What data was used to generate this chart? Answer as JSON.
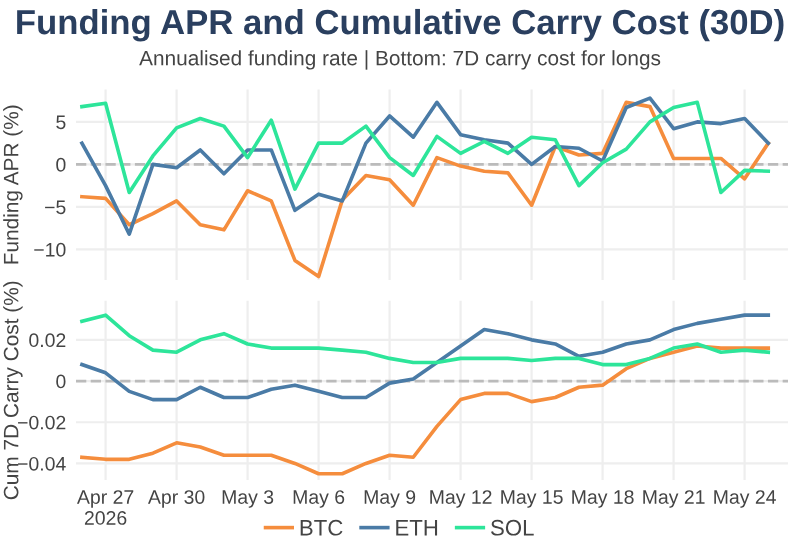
{
  "chart_data": [
    {
      "type": "line",
      "title": "Funding APR and Cumulative Carry Cost (30D)",
      "subtitle": "Annualised funding rate | Bottom: 7D carry cost for longs",
      "ylabel": "Funding APR (%)",
      "x": [
        "2026-04-26",
        "2026-04-27",
        "2026-04-28",
        "2026-04-29",
        "2026-04-30",
        "2026-05-01",
        "2026-05-02",
        "2026-05-03",
        "2026-05-04",
        "2026-05-05",
        "2026-05-06",
        "2026-05-07",
        "2026-05-08",
        "2026-05-09",
        "2026-05-10",
        "2026-05-11",
        "2026-05-12",
        "2026-05-13",
        "2026-05-14",
        "2026-05-15",
        "2026-05-16",
        "2026-05-17",
        "2026-05-18",
        "2026-05-19",
        "2026-05-20",
        "2026-05-21",
        "2026-05-22",
        "2026-05-23",
        "2026-05-24",
        "2026-05-25"
      ],
      "series": [
        {
          "name": "BTC",
          "color": "#f58d3d",
          "values": [
            -3.8,
            -4,
            -7.1,
            -5.8,
            -4.3,
            -7.1,
            -7.7,
            -3.1,
            -4.3,
            -11.3,
            -13.2,
            -4.2,
            -1.3,
            -1.8,
            -4.8,
            0.8,
            -0.2,
            -0.8,
            -1,
            -4.8,
            2.1,
            1.1,
            1.3,
            7.3,
            6.8,
            0.7,
            0.7,
            0.7,
            -1.7,
            2.5
          ]
        },
        {
          "name": "ETH",
          "color": "#4a7ba6",
          "values": [
            2.5,
            -2.5,
            -8.2,
            0,
            -0.4,
            1.7,
            -1.1,
            1.7,
            1.7,
            -5.4,
            -3.5,
            -4.3,
            2.5,
            5.7,
            3.2,
            7.3,
            3.5,
            2.9,
            2.5,
            0,
            2.1,
            1.9,
            0.4,
            6.7,
            7.8,
            4.2,
            5,
            4.8,
            5.4,
            2.5
          ]
        },
        {
          "name": "SOL",
          "color": "#2de59a",
          "values": [
            6.8,
            7.2,
            -3.3,
            1,
            4.3,
            5.4,
            4.5,
            0.8,
            5.2,
            -2.9,
            2.5,
            2.5,
            4.5,
            0.8,
            -1.3,
            3.3,
            1.3,
            2.7,
            1.3,
            3.2,
            2.9,
            -2.5,
            0.2,
            1.8,
            5,
            6.7,
            7.3,
            -3.3,
            -0.7,
            -0.8
          ]
        }
      ],
      "xlim": [
        "2026-04-25T18:00",
        "2026-05-25T20:00"
      ],
      "ylim": [
        -13.6,
        8.8
      ],
      "yticks": [
        {
          "value": -10,
          "label": "−10"
        },
        {
          "value": -5,
          "label": "−5"
        },
        0,
        5
      ],
      "ref_lines": [
        {
          "axis": "y",
          "value": 0,
          "color": "#bbbbbb",
          "line_style": "dashed"
        }
      ],
      "grid": true,
      "line_style": "solid",
      "marker": "none",
      "tick_labels": "y",
      "legend": "bottom"
    },
    {
      "type": "line",
      "ylabel": "Cum 7D Carry Cost (%)",
      "x": [
        "2026-04-26",
        "2026-04-27",
        "2026-04-28",
        "2026-04-29",
        "2026-04-30",
        "2026-05-01",
        "2026-05-02",
        "2026-05-03",
        "2026-05-04",
        "2026-05-05",
        "2026-05-06",
        "2026-05-07",
        "2026-05-08",
        "2026-05-09",
        "2026-05-10",
        "2026-05-11",
        "2026-05-12",
        "2026-05-13",
        "2026-05-14",
        "2026-05-15",
        "2026-05-16",
        "2026-05-17",
        "2026-05-18",
        "2026-05-19",
        "2026-05-20",
        "2026-05-21",
        "2026-05-22",
        "2026-05-23",
        "2026-05-24",
        "2026-05-25"
      ],
      "series": [
        {
          "name": "BTC",
          "color": "#f58d3d",
          "values": [
            -0.037,
            -0.038,
            -0.038,
            -0.035,
            -0.03,
            -0.032,
            -0.036,
            -0.036,
            -0.036,
            -0.04,
            -0.045,
            -0.045,
            -0.04,
            -0.036,
            -0.037,
            -0.022,
            -0.009,
            -0.006,
            -0.006,
            -0.01,
            -0.008,
            -0.003,
            -0.002,
            0.006,
            0.011,
            0.014,
            0.017,
            0.016,
            0.016,
            0.016
          ]
        },
        {
          "name": "ETH",
          "color": "#4a7ba6",
          "values": [
            0.008,
            0.004,
            -0.005,
            -0.009,
            -0.009,
            -0.003,
            -0.008,
            -0.008,
            -0.004,
            -0.002,
            -0.005,
            -0.008,
            -0.008,
            -0.001,
            0.001,
            0.009,
            0.017,
            0.025,
            0.023,
            0.02,
            0.018,
            0.012,
            0.014,
            0.018,
            0.02,
            0.025,
            0.028,
            0.03,
            0.032,
            0.032
          ]
        },
        {
          "name": "SOL",
          "color": "#2de59a",
          "values": [
            0.029,
            0.032,
            0.022,
            0.015,
            0.014,
            0.02,
            0.023,
            0.018,
            0.016,
            0.016,
            0.016,
            0.015,
            0.014,
            0.011,
            0.009,
            0.009,
            0.011,
            0.011,
            0.011,
            0.01,
            0.011,
            0.011,
            0.008,
            0.008,
            0.011,
            0.016,
            0.018,
            0.014,
            0.015,
            0.014
          ]
        }
      ],
      "xlim": [
        "2026-04-25T18:00",
        "2026-05-25T20:00"
      ],
      "ylim": [
        -0.048,
        0.039
      ],
      "yticks": [
        {
          "value": -0.04,
          "label": "−0.04"
        },
        {
          "value": -0.02,
          "label": "−0.02"
        },
        0,
        0.02
      ],
      "xticks": [
        {
          "value": "2026-04-27",
          "label": "Apr 27\n2026"
        },
        {
          "value": "2026-04-30",
          "label": "Apr 30"
        },
        {
          "value": "2026-05-03",
          "label": "May 3"
        },
        {
          "value": "2026-05-06",
          "label": "May 6"
        },
        {
          "value": "2026-05-09",
          "label": "May 9"
        },
        {
          "value": "2026-05-12",
          "label": "May 12"
        },
        {
          "value": "2026-05-15",
          "label": "May 15"
        },
        {
          "value": "2026-05-18",
          "label": "May 18"
        },
        {
          "value": "2026-05-21",
          "label": "May 21"
        },
        {
          "value": "2026-05-24",
          "label": "May 24"
        }
      ],
      "ref_lines": [
        {
          "axis": "y",
          "value": 0,
          "color": "#bbbbbb",
          "line_style": "dashed"
        }
      ],
      "grid": true,
      "line_style": "solid",
      "marker": "none",
      "legend": "bottom"
    }
  ]
}
